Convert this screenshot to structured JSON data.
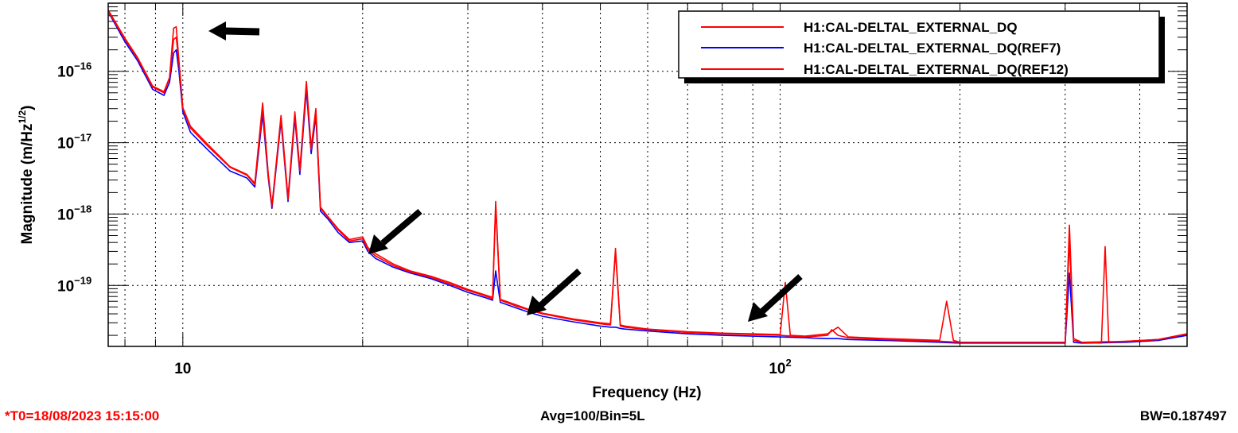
{
  "chart_data": {
    "type": "line",
    "xlabel": "Frequency (Hz)",
    "ylabel": "Magnitude (m/Hz",
    "ylabel_exponent": "1/2",
    "ylabel_suffix": ")",
    "x_scale": "log",
    "y_scale": "log",
    "xlim": [
      7.5,
      480
    ],
    "ylim": [
      1.4e-20,
      9e-16
    ],
    "grid": true,
    "legend_position": "top-right",
    "x_tick_labels": [
      {
        "base": "10",
        "exp": "",
        "value": 10
      },
      {
        "base": "10",
        "exp": "2",
        "value": 100
      }
    ],
    "y_tick_labels": [
      {
        "base": "10",
        "exp": "−16",
        "value": 1e-16
      },
      {
        "base": "10",
        "exp": "−17",
        "value": 1e-17
      },
      {
        "base": "10",
        "exp": "−18",
        "value": 1e-18
      },
      {
        "base": "10",
        "exp": "−19",
        "value": 1e-19
      }
    ],
    "series": [
      {
        "name": "H1:CAL-DELTAL_EXTERNAL_DQ",
        "color": "#ff0000",
        "x": [
          7.5,
          8,
          8.4,
          8.9,
          9.3,
          9.5,
          9.65,
          9.75,
          9.85,
          10,
          10.3,
          11,
          12,
          12.8,
          13.2,
          13.6,
          13.9,
          14.1,
          14.6,
          15,
          15.4,
          15.7,
          16.1,
          16.4,
          16.7,
          17,
          17.5,
          18.2,
          19,
          20,
          20.4,
          21,
          22.5,
          24,
          26,
          28,
          30,
          32,
          33,
          33.4,
          34,
          36,
          38,
          40,
          45,
          50,
          52,
          53,
          54,
          55,
          60,
          70,
          75,
          80,
          90,
          100,
          110,
          120,
          122,
          125,
          130,
          150,
          185,
          200,
          250,
          300,
          305,
          310,
          320,
          380,
          430,
          480
        ],
        "y": [
          7e-16,
          2.8e-16,
          1.5e-16,
          6e-17,
          5e-17,
          8e-17,
          2.8e-16,
          3e-16,
          1.3e-16,
          3e-17,
          1.6e-17,
          9e-18,
          4.5e-18,
          3.5e-18,
          2.6e-18,
          3e-17,
          3.5e-18,
          1.3e-18,
          2.2e-17,
          1.6e-18,
          2.5e-17,
          4e-18,
          6.5e-17,
          8e-18,
          2.8e-17,
          1.2e-18,
          9e-19,
          6e-19,
          4.2e-19,
          4.5e-19,
          3.2e-19,
          2.6e-19,
          1.9e-19,
          1.55e-19,
          1.3e-19,
          1.05e-19,
          8.5e-20,
          7.2e-20,
          6.5e-20,
          1.3e-18,
          6.2e-20,
          5.2e-20,
          4.5e-20,
          4e-20,
          3.3e-20,
          2.9e-20,
          2.8e-20,
          3e-19,
          2.7e-20,
          2.6e-20,
          2.4e-20,
          2.2e-20,
          2.15e-20,
          2.1e-20,
          2.05e-20,
          2e-20,
          1.9e-20,
          2e-20,
          2.4e-20,
          2e-20,
          1.85e-20,
          1.75e-20,
          1.65e-20,
          1.6e-20,
          1.6e-20,
          1.6e-20,
          4.3e-19,
          1.7e-20,
          1.6e-20,
          1.65e-20,
          1.75e-20,
          2.1e-20
        ]
      },
      {
        "name": "H1:CAL-DELTAL_EXTERNAL_DQ(REF7)",
        "color": "#0000ff",
        "x": [
          7.5,
          8,
          8.4,
          8.9,
          9.3,
          9.5,
          9.65,
          9.75,
          9.85,
          10,
          10.3,
          11,
          12,
          12.8,
          13.2,
          13.6,
          13.9,
          14.1,
          14.6,
          15,
          15.4,
          15.7,
          16.1,
          16.4,
          16.7,
          17,
          17.5,
          18.2,
          19,
          20,
          20.4,
          21,
          22.5,
          24,
          26,
          28,
          30,
          32,
          33,
          33.4,
          34,
          36,
          38,
          40,
          45,
          50,
          52,
          53,
          54,
          55,
          60,
          70,
          75,
          80,
          90,
          100,
          110,
          120,
          125,
          130,
          150,
          185,
          200,
          250,
          300,
          305,
          310,
          320,
          380,
          430,
          480
        ],
        "y": [
          6.8e-16,
          2.6e-16,
          1.4e-16,
          5.6e-17,
          4.6e-17,
          7e-17,
          1.8e-16,
          2e-16,
          1e-16,
          2.7e-17,
          1.4e-17,
          8e-18,
          4e-18,
          3.2e-18,
          2.4e-18,
          2.5e-17,
          3.2e-18,
          1.2e-18,
          2e-17,
          1.5e-18,
          2.2e-17,
          3.6e-18,
          5.5e-17,
          7e-18,
          2.4e-17,
          1.1e-18,
          8.5e-19,
          5.5e-19,
          4e-19,
          4.2e-19,
          3e-19,
          2.4e-19,
          1.8e-19,
          1.5e-19,
          1.25e-19,
          1e-19,
          8e-20,
          6.8e-20,
          6.2e-20,
          1.6e-19,
          5.8e-20,
          4.9e-20,
          4.2e-20,
          3.7e-20,
          3.1e-20,
          2.7e-20,
          2.6e-20,
          2.6e-20,
          2.5e-20,
          2.45e-20,
          2.3e-20,
          2.1e-20,
          2.05e-20,
          2e-20,
          1.95e-20,
          1.9e-20,
          1.85e-20,
          1.8e-20,
          1.8e-20,
          1.75e-20,
          1.7e-20,
          1.6e-20,
          1.55e-20,
          1.55e-20,
          1.55e-20,
          1.5e-19,
          1.6e-20,
          1.55e-20,
          1.6e-20,
          1.7e-20,
          2e-20
        ]
      },
      {
        "name": "H1:CAL-DELTAL_EXTERNAL_DQ(REF12)",
        "color": "#ff0000",
        "x": [
          7.5,
          8,
          8.4,
          8.9,
          9.3,
          9.5,
          9.65,
          9.75,
          9.85,
          10,
          10.3,
          11,
          12,
          12.8,
          13.2,
          13.6,
          13.9,
          14.1,
          14.6,
          15,
          15.4,
          15.7,
          16.1,
          16.4,
          16.7,
          17,
          17.5,
          18.2,
          19,
          20,
          20.4,
          21,
          22.5,
          24,
          26,
          28,
          30,
          32,
          33,
          33.4,
          34,
          36,
          38,
          40,
          45,
          50,
          52,
          53,
          54,
          55,
          60,
          70,
          75,
          80,
          90,
          100,
          102,
          104,
          110,
          120,
          125,
          130,
          150,
          185,
          190,
          195,
          200,
          250,
          300,
          305,
          310,
          320,
          345,
          350,
          355,
          380,
          430,
          480
        ],
        "y": [
          7.2e-16,
          2.9e-16,
          1.55e-16,
          6.2e-17,
          5.2e-17,
          8.2e-17,
          4e-16,
          4.2e-16,
          1.4e-16,
          3.1e-17,
          1.7e-17,
          9.5e-18,
          4.6e-18,
          3.6e-18,
          2.7e-18,
          3.6e-17,
          3.6e-18,
          1.3e-18,
          2.4e-17,
          1.7e-18,
          2.7e-17,
          4.2e-18,
          7.2e-17,
          8.5e-18,
          3e-17,
          1.25e-18,
          9.2e-19,
          6.2e-19,
          4.4e-19,
          4.8e-19,
          3.4e-19,
          2.8e-19,
          2e-19,
          1.6e-19,
          1.35e-19,
          1.1e-19,
          8.8e-20,
          7.4e-20,
          6.8e-20,
          1.5e-18,
          6.4e-20,
          5.4e-20,
          4.6e-20,
          4.1e-20,
          3.4e-20,
          3e-20,
          2.9e-20,
          3.3e-19,
          2.8e-20,
          2.7e-20,
          2.45e-20,
          2.25e-20,
          2.2e-20,
          2.15e-20,
          2.1e-20,
          2.05e-20,
          1.1e-19,
          2e-20,
          1.95e-20,
          2.1e-20,
          2.6e-20,
          1.9e-20,
          1.8e-20,
          1.7e-20,
          6e-20,
          1.7e-20,
          1.6e-20,
          1.6e-20,
          1.6e-20,
          7e-19,
          1.8e-20,
          1.6e-20,
          1.55e-20,
          3.5e-19,
          1.6e-20,
          1.65e-20,
          1.75e-20,
          2.1e-20
        ]
      }
    ]
  },
  "footer": {
    "t0": "*T0=18/08/2023 15:15:00",
    "avg": "Avg=100/Bin=5L",
    "bw": "BW=0.187497"
  }
}
